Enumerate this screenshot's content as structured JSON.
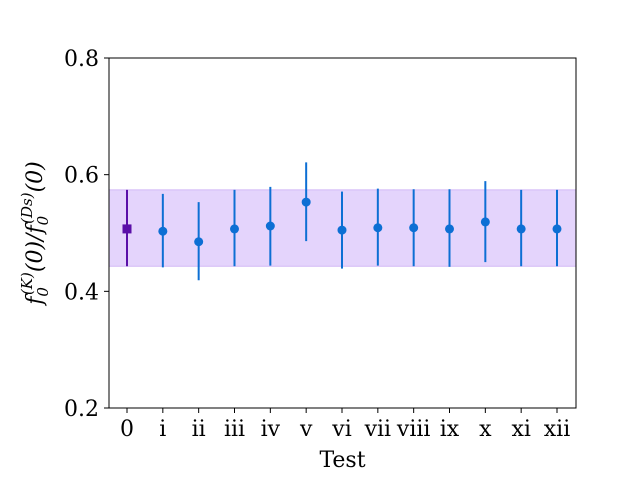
{
  "chart_data": {
    "type": "scatter",
    "title": "",
    "xlabel": "Test",
    "ylabel": {
      "text": "f0(K)(0)/f0(Ds)(0)",
      "f1": "f",
      "sub1": "0",
      "sup1": "(K)",
      "arg1": "(0)/",
      "f2": "f",
      "sub2": "0",
      "sup2": "(Ds)",
      "arg2": "(0)"
    },
    "ylim": [
      0.2,
      0.8
    ],
    "yticks": [
      "0.2",
      "0.4",
      "0.6",
      "0.8"
    ],
    "categories": [
      "0",
      "i",
      "ii",
      "iii",
      "iv",
      "v",
      "vi",
      "vii",
      "viii",
      "ix",
      "x",
      "xi",
      "xii"
    ],
    "grid": false,
    "band": {
      "low": 0.443,
      "high": 0.574,
      "color": "#e4d4fc",
      "edge": "#d2b8f6"
    },
    "colors": {
      "reference": "#5a0fa8",
      "series": "#0d6fd4"
    },
    "series": [
      {
        "markers": [
          "square",
          "circle",
          "circle",
          "circle",
          "circle",
          "circle",
          "circle",
          "circle",
          "circle",
          "circle",
          "circle",
          "circle",
          "circle"
        ],
        "values": [
          0.507,
          0.503,
          0.485,
          0.507,
          0.512,
          0.553,
          0.505,
          0.509,
          0.509,
          0.507,
          0.519,
          0.507,
          0.507
        ],
        "err_low": [
          0.443,
          0.441,
          0.419,
          0.443,
          0.444,
          0.486,
          0.439,
          0.444,
          0.443,
          0.442,
          0.45,
          0.443,
          0.443
        ],
        "err_high": [
          0.574,
          0.567,
          0.553,
          0.574,
          0.579,
          0.621,
          0.571,
          0.576,
          0.575,
          0.575,
          0.589,
          0.574,
          0.574
        ]
      }
    ]
  }
}
